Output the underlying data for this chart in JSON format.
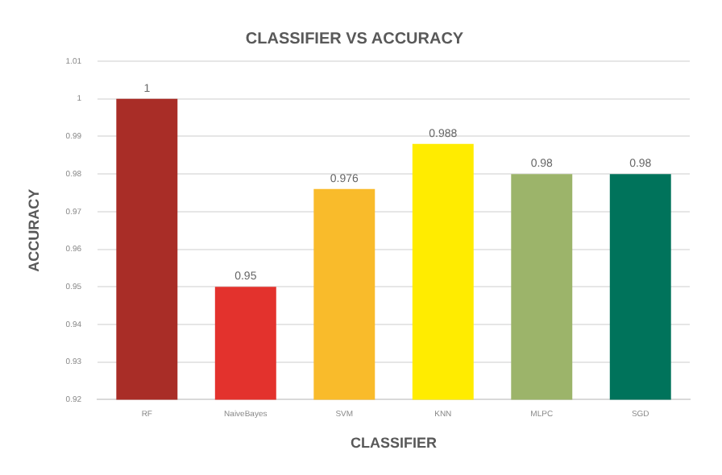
{
  "chart_data": {
    "type": "bar",
    "title": "CLASSIFIER VS ACCURACY",
    "xlabel": "CLASSIFIER",
    "ylabel": "ACCURACY",
    "categories": [
      "RF",
      "NaiveBayes",
      "SVM",
      "KNN",
      "MLPC",
      "SGD"
    ],
    "values": [
      1,
      0.95,
      0.976,
      0.988,
      0.98,
      0.98
    ],
    "colors": [
      "#a92d27",
      "#e3322d",
      "#f9bb2b",
      "#ffec00",
      "#9cb46a",
      "#00735b"
    ],
    "data_labels": true,
    "ylim": [
      0.92,
      1.01
    ],
    "yticks": [
      0.92,
      0.93,
      0.94,
      0.95,
      0.96,
      0.97,
      0.98,
      0.99,
      1,
      1.01
    ],
    "grid": "y",
    "legend": false
  }
}
